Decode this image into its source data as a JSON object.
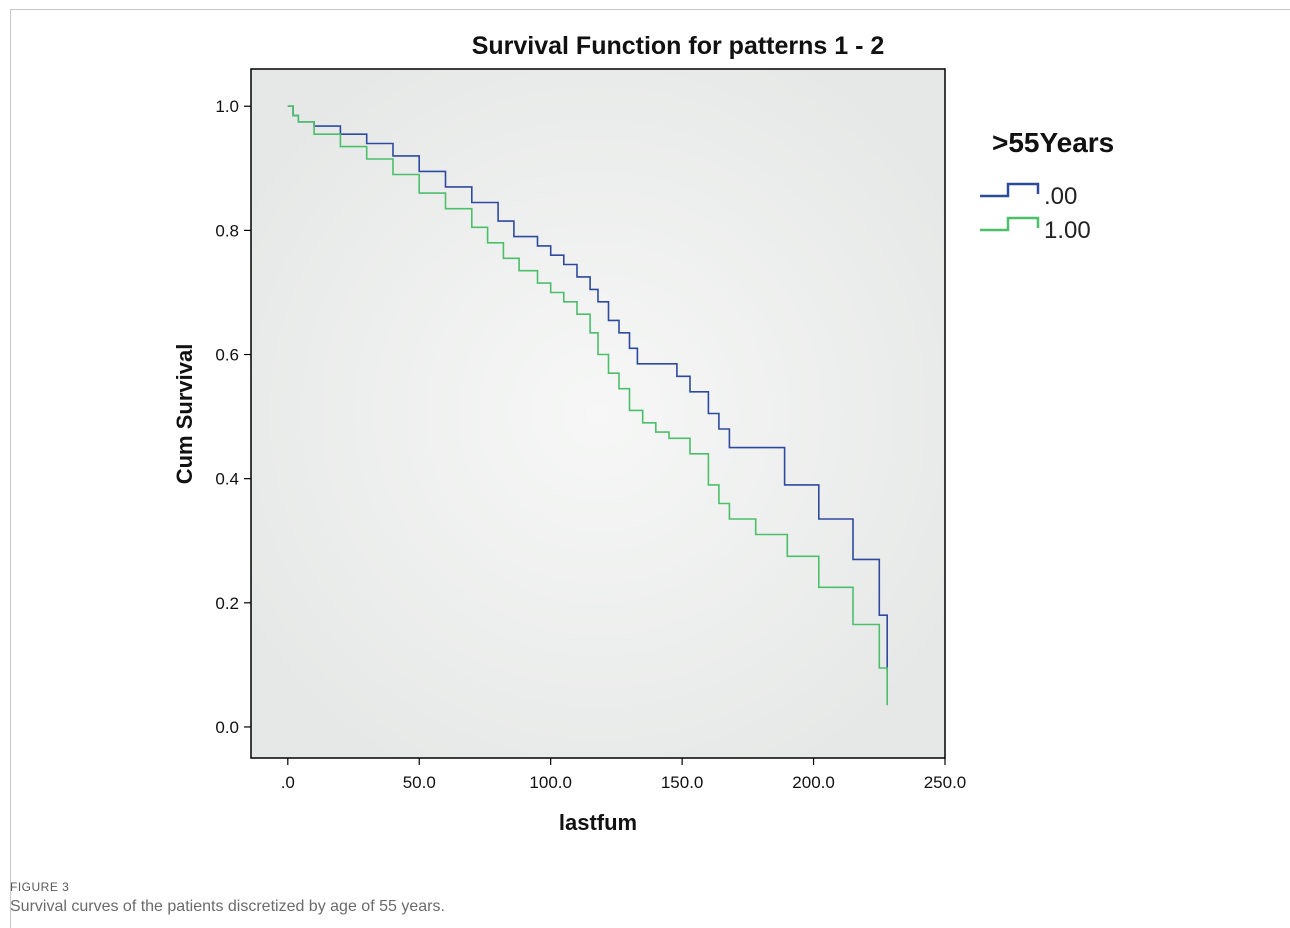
{
  "chart_data": {
    "type": "line",
    "step": true,
    "title": "Survival Function for patterns 1 - 2",
    "xlabel": "lastfum",
    "ylabel": "Cum Survival",
    "xlim": [
      -14,
      250
    ],
    "ylim": [
      -0.05,
      1.06
    ],
    "x_ticks": [
      0,
      50,
      100,
      150,
      200,
      250
    ],
    "x_tick_labels": [
      ".0",
      "50.0",
      "100.0",
      "150.0",
      "200.0",
      "250.0"
    ],
    "y_ticks": [
      0,
      0.2,
      0.4,
      0.6,
      0.8,
      1.0
    ],
    "y_tick_labels": [
      "0.0",
      "0.2",
      "0.4",
      "0.6",
      "0.8",
      "1.0"
    ],
    "legend": {
      "title": ">55Years",
      "position": "right"
    },
    "series": [
      {
        "name": ".00",
        "color": "#2e4a9e",
        "x": [
          0,
          2,
          4,
          10,
          20,
          30,
          40,
          50,
          60,
          70,
          80,
          86,
          95,
          100,
          105,
          110,
          115,
          118,
          122,
          126,
          130,
          133,
          140,
          148,
          153,
          160,
          164,
          168,
          189,
          202,
          215,
          225,
          228
        ],
        "y": [
          1.0,
          0.985,
          0.975,
          0.968,
          0.955,
          0.94,
          0.92,
          0.895,
          0.87,
          0.845,
          0.815,
          0.79,
          0.775,
          0.76,
          0.745,
          0.725,
          0.705,
          0.685,
          0.655,
          0.635,
          0.61,
          0.585,
          0.585,
          0.565,
          0.54,
          0.505,
          0.48,
          0.45,
          0.39,
          0.335,
          0.27,
          0.18,
          0.09
        ]
      },
      {
        "name": "1.00",
        "color": "#4cbf6a",
        "x": [
          0,
          2,
          4,
          10,
          20,
          30,
          40,
          50,
          60,
          70,
          76,
          82,
          88,
          95,
          100,
          105,
          110,
          115,
          118,
          122,
          126,
          130,
          135,
          140,
          145,
          153,
          160,
          164,
          168,
          178,
          190,
          202,
          215,
          225,
          228
        ],
        "y": [
          1.0,
          0.985,
          0.975,
          0.955,
          0.935,
          0.915,
          0.89,
          0.86,
          0.835,
          0.805,
          0.78,
          0.755,
          0.735,
          0.715,
          0.7,
          0.685,
          0.665,
          0.635,
          0.6,
          0.57,
          0.545,
          0.51,
          0.49,
          0.475,
          0.465,
          0.44,
          0.39,
          0.36,
          0.335,
          0.31,
          0.275,
          0.225,
          0.165,
          0.095,
          0.035
        ]
      }
    ]
  },
  "figure": {
    "label": "FIGURE 3",
    "caption": "Survival curves of the patients discretized by age of 55 years."
  }
}
